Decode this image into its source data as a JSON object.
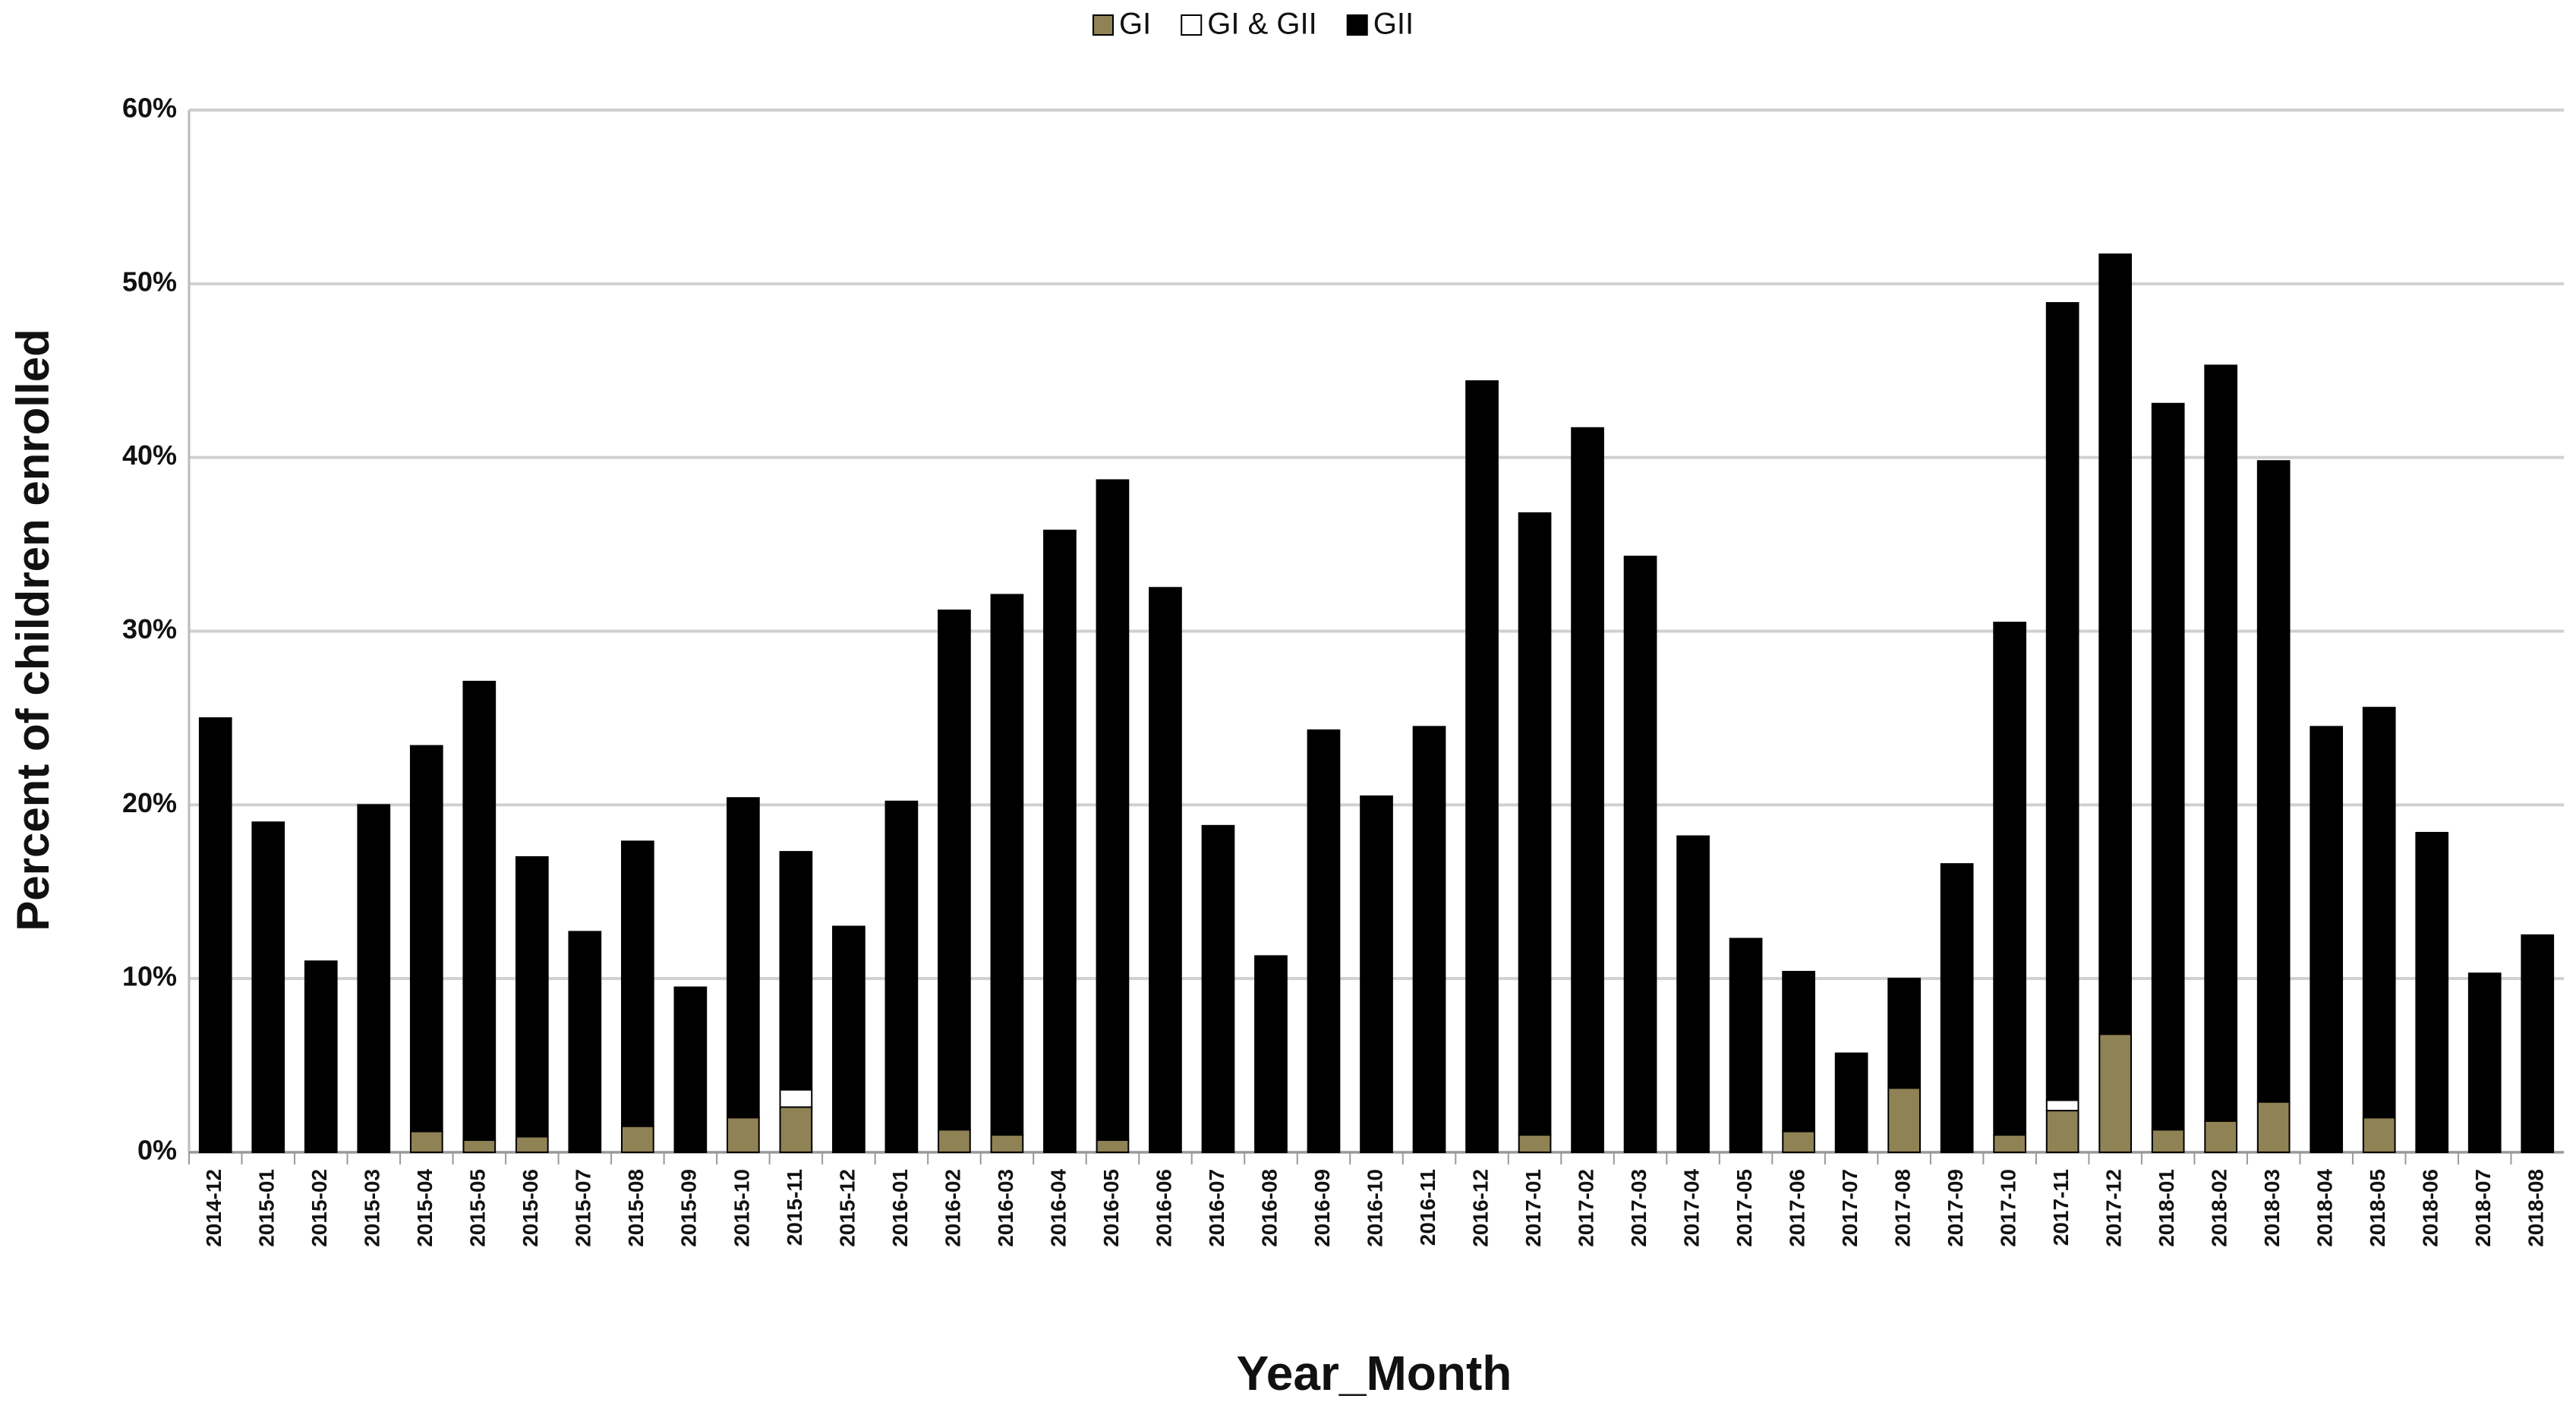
{
  "chart_data": {
    "type": "stacked_bar",
    "x_label": "Year_Month",
    "y_label": "Percent of children enrolled",
    "categories": [
      "2014-12",
      "2015-01",
      "2015-02",
      "2015-03",
      "2015-04",
      "2015-05",
      "2015-06",
      "2015-07",
      "2015-08",
      "2015-09",
      "2015-10",
      "2015-11",
      "2015-12",
      "2016-01",
      "2016-02",
      "2016-03",
      "2016-04",
      "2016-05",
      "2016-06",
      "2016-07",
      "2016-08",
      "2016-09",
      "2016-10",
      "2016-11",
      "2016-12",
      "2017-01",
      "2017-02",
      "2017-03",
      "2017-04",
      "2017-05",
      "2017-06",
      "2017-07",
      "2017-08",
      "2017-09",
      "2017-10",
      "2017-11",
      "2017-12",
      "2018-01",
      "2018-02",
      "2018-03",
      "2018-04",
      "2018-05",
      "2018-06",
      "2018-07",
      "2018-08"
    ],
    "series": [
      {
        "name": "GI",
        "color": "#8f8255",
        "values": [
          0,
          0,
          0,
          0,
          1.2,
          0.7,
          0.9,
          0,
          1.5,
          0,
          2.0,
          2.6,
          0,
          0,
          1.3,
          1.0,
          0,
          0.7,
          0,
          0,
          0,
          0,
          0,
          0,
          0,
          1.0,
          0,
          0,
          0,
          0,
          1.2,
          0,
          3.7,
          0,
          1.0,
          2.4,
          6.8,
          1.3,
          1.8,
          2.9,
          0,
          2.0,
          0,
          0,
          0
        ]
      },
      {
        "name": "GI & GII",
        "color": "#ffffff",
        "values": [
          0,
          0,
          0,
          0,
          0,
          0,
          0,
          0,
          0,
          0,
          0,
          1.0,
          0,
          0,
          0,
          0,
          0,
          0,
          0,
          0,
          0,
          0,
          0,
          0,
          0,
          0,
          0,
          0,
          0,
          0,
          0,
          0,
          0,
          0,
          0,
          0.6,
          0,
          0,
          0,
          0,
          0,
          0,
          0,
          0,
          0
        ]
      },
      {
        "name": "GII",
        "color": "#000000",
        "values": [
          25.0,
          19.0,
          11.0,
          20.0,
          22.2,
          26.4,
          16.1,
          12.7,
          16.4,
          9.5,
          18.4,
          13.7,
          13.0,
          20.2,
          29.9,
          31.1,
          35.8,
          38.0,
          32.5,
          18.8,
          11.3,
          24.3,
          20.5,
          24.5,
          44.4,
          35.8,
          41.7,
          34.3,
          18.2,
          12.3,
          9.2,
          5.7,
          6.3,
          16.6,
          29.5,
          45.9,
          44.9,
          41.8,
          43.5,
          36.9,
          24.5,
          23.6,
          18.4,
          10.3,
          12.5
        ]
      }
    ],
    "ylim": [
      0,
      60
    ],
    "yticks": [
      {
        "value": 0,
        "label": "0%"
      },
      {
        "value": 10,
        "label": "10%"
      },
      {
        "value": 20,
        "label": "20%"
      },
      {
        "value": 30,
        "label": "30%"
      },
      {
        "value": 40,
        "label": "40%"
      },
      {
        "value": 50,
        "label": "50%"
      },
      {
        "value": 60,
        "label": "60%"
      }
    ],
    "grid": true,
    "legend": "top"
  }
}
